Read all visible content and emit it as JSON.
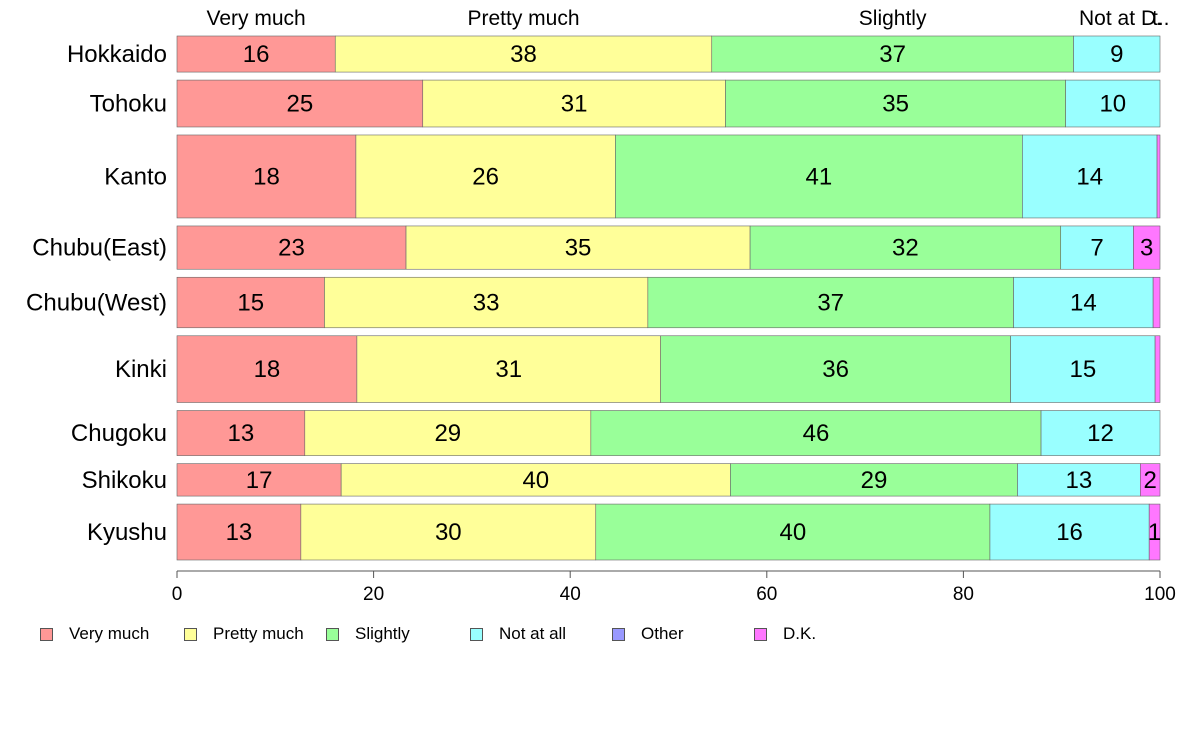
{
  "chart_data": {
    "type": "bar",
    "orientation": "horizontal",
    "stacked": true,
    "title": "",
    "xlabel": "",
    "ylabel": "",
    "xlim": [
      0,
      100
    ],
    "x_ticks": [
      0,
      20,
      40,
      60,
      80,
      100
    ],
    "grid": false,
    "legend_position": "bottom",
    "categories": [
      "Hokkaido",
      "Tohoku",
      "Kanto",
      "Chubu(East)",
      "Chubu(West)",
      "Kinki",
      "Chugoku",
      "Shikoku",
      "Kyushu"
    ],
    "bar_weights": [
      1.0,
      1.3,
      2.3,
      1.2,
      1.4,
      1.85,
      1.25,
      0.9,
      1.55
    ],
    "series": [
      {
        "name": "Very much",
        "color": "#ff9896",
        "values": [
          16.1,
          25.0,
          18.2,
          23.3,
          15.0,
          18.3,
          13.0,
          16.7,
          12.6
        ]
      },
      {
        "name": "Pretty much",
        "color": "#ffff99",
        "values": [
          38.3,
          30.8,
          26.4,
          35.0,
          32.9,
          30.9,
          29.1,
          39.6,
          30.0
        ]
      },
      {
        "name": "Slightly",
        "color": "#99ff99",
        "values": [
          36.8,
          34.6,
          41.4,
          31.6,
          37.2,
          35.6,
          45.8,
          29.2,
          40.1
        ]
      },
      {
        "name": "Not at all",
        "color": "#99ffff",
        "values": [
          8.8,
          9.6,
          13.7,
          7.4,
          14.2,
          14.7,
          12.1,
          12.5,
          16.2
        ]
      },
      {
        "name": "Other",
        "color": "#9999ff",
        "values": [
          0,
          0,
          0,
          0,
          0,
          0,
          0,
          0,
          0
        ]
      },
      {
        "name": "D.K.",
        "color": "#ff77ff",
        "values": [
          0,
          0,
          0.3,
          2.7,
          0.7,
          0.5,
          0,
          2.0,
          1.1
        ]
      }
    ],
    "top_labels": [
      "Very much",
      "Pretty much",
      "Slightly",
      "Not at",
      "D.",
      "t.."
    ],
    "legend": [
      "Very much",
      "Pretty much",
      "Slightly",
      "Not at all",
      "Other",
      "D.K."
    ]
  }
}
